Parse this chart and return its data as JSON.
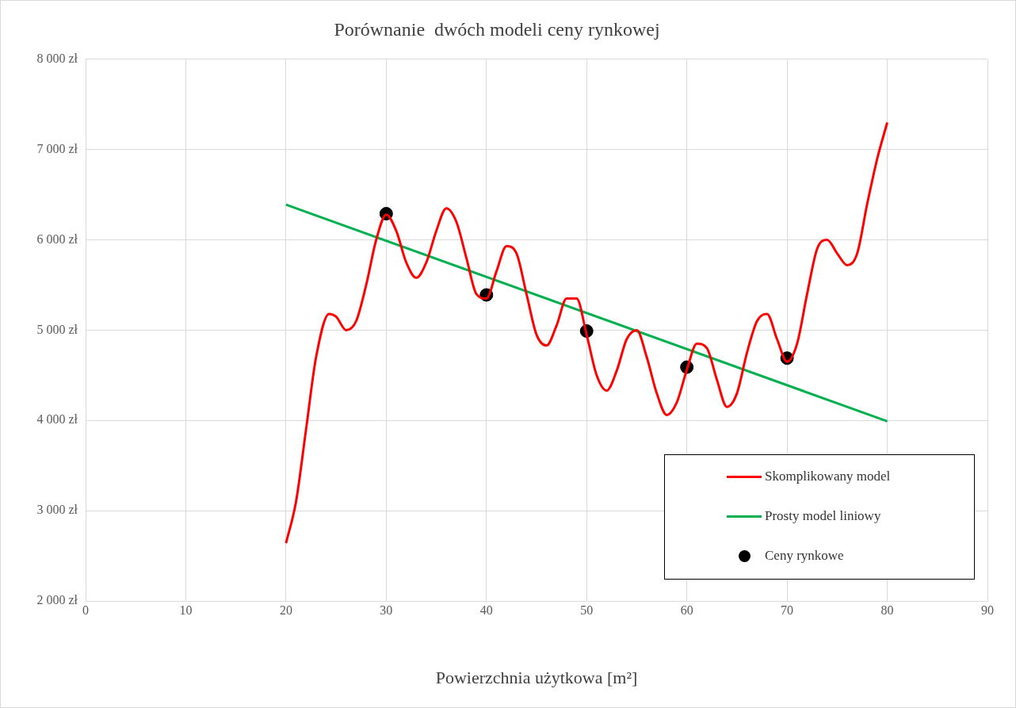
{
  "chart_data": {
    "type": "line",
    "title": "Porównanie  dwóch modeli ceny rynkowej",
    "xlabel": "Powierzchnia użytkowa [m²]",
    "xlim": [
      0,
      90
    ],
    "xticks": [
      0,
      10,
      20,
      30,
      40,
      50,
      60,
      70,
      80,
      90
    ],
    "ylim": [
      2000,
      8000
    ],
    "yticks": [
      {
        "value": 2000,
        "label": "2 000 zł"
      },
      {
        "value": 3000,
        "label": "3 000 zł"
      },
      {
        "value": 4000,
        "label": "4 000 zł"
      },
      {
        "value": 5000,
        "label": "5 000 zł"
      },
      {
        "value": 6000,
        "label": "6 000 zł"
      },
      {
        "value": 7000,
        "label": "7 000 zł"
      },
      {
        "value": 8000,
        "label": "8 000 zł"
      }
    ],
    "grid": true,
    "legend": "bottom right",
    "series": [
      {
        "name": "Skomplikowany model",
        "type": "line",
        "color": "#ff0000",
        "marker": "none",
        "x": [
          20,
          21,
          22,
          23,
          24.3,
          25,
          26,
          27,
          28,
          29,
          30,
          31,
          32,
          33,
          34,
          35,
          36,
          37,
          38,
          39,
          40,
          41,
          42,
          43,
          44,
          45,
          46,
          47,
          48,
          49,
          50,
          51,
          52,
          53,
          54,
          55,
          56,
          57,
          58,
          59,
          60,
          61,
          62,
          63,
          64,
          65,
          66,
          67,
          68,
          69,
          70,
          71,
          72,
          73,
          74,
          75,
          76,
          77,
          78,
          79,
          80
        ],
        "values": [
          2640,
          3100,
          3900,
          4700,
          5180,
          5150,
          5000,
          5100,
          5500,
          6000,
          6280,
          6100,
          5750,
          5580,
          5750,
          6100,
          6350,
          6200,
          5800,
          5400,
          5350,
          5650,
          5930,
          5850,
          5400,
          4950,
          4830,
          5050,
          5350,
          5350,
          4950,
          4500,
          4330,
          4550,
          4900,
          5000,
          4700,
          4300,
          4060,
          4200,
          4560,
          4850,
          4800,
          4450,
          4150,
          4300,
          4750,
          5100,
          5180,
          4900,
          4650,
          4850,
          5400,
          5900,
          6000,
          5850,
          5720,
          5850,
          6400,
          6900,
          7300
        ]
      },
      {
        "name": "Prosty model liniowy",
        "type": "line",
        "color": "#00b050",
        "marker": "none",
        "x": [
          20,
          80
        ],
        "values": [
          6390,
          3990
        ]
      },
      {
        "name": "Ceny rynkowe",
        "type": "scatter",
        "color": "#000000",
        "marker": "circle",
        "x": [
          30,
          40,
          50,
          60,
          70
        ],
        "values": [
          6290,
          5390,
          4990,
          4590,
          4690
        ]
      }
    ]
  }
}
